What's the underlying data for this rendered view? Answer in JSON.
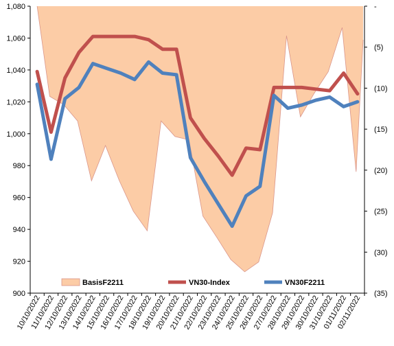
{
  "chart_data": {
    "type": "line",
    "categories": [
      "10/10/2022",
      "11/10/2022",
      "12/10/2022",
      "13/10/2022",
      "14/10/2022",
      "15/10/2022",
      "16/10/2022",
      "17/10/2022",
      "18/10/2022",
      "19/10/2022",
      "20/10/2022",
      "21/10/2022",
      "22/10/2022",
      "23/10/2022",
      "24/10/2022",
      "25/10/2022",
      "26/10/2022",
      "27/10/2022",
      "28/10/2022",
      "29/10/2022",
      "30/10/2022",
      "31/10/2022",
      "01/11/2022",
      "02/11/2022"
    ],
    "left_axis": {
      "min": 900,
      "max": 1080,
      "ticks": [
        "900",
        "920",
        "940",
        "960",
        "980",
        "1,000",
        "1,020",
        "1,040",
        "1,060",
        "1,080"
      ]
    },
    "right_axis": {
      "min": 0,
      "max": 35,
      "reversed": true,
      "ticks": [
        "-",
        "(5)",
        "(10)",
        "(15)",
        "(20)",
        "(25)",
        "(30)",
        "(35)"
      ]
    },
    "series": [
      {
        "name": "BasisF2211",
        "kind": "area",
        "axis": "right",
        "color": "#fccca6",
        "edge_color": "#d9958a",
        "x": [
          0,
          0.9,
          1.9,
          2.9,
          3.9,
          4.9,
          5.9,
          6.9,
          7.9,
          8.9,
          9.9,
          10.9,
          11.9,
          12.9,
          13.9,
          14.9,
          15.9,
          16.9,
          17.9,
          18.9,
          19.9,
          20.9,
          21.9,
          22.9,
          23.4
        ],
        "values": [
          0,
          11,
          12,
          14,
          21.3,
          17,
          21.3,
          25,
          27.4,
          14,
          15.9,
          16.3,
          25.6,
          28.2,
          30.9,
          32.4,
          31.2,
          25.2,
          3.6,
          13.5,
          10.6,
          8,
          2.6,
          20.2,
          4.1
        ]
      },
      {
        "name": "VN30-Index",
        "kind": "line",
        "axis": "left",
        "color": "#c0504d",
        "x": [
          0,
          1,
          2,
          3,
          4,
          5,
          6,
          7,
          8,
          9,
          10,
          11,
          12,
          13,
          14,
          15,
          16,
          17,
          18,
          19,
          20,
          21,
          22,
          23
        ],
        "values": [
          1039,
          1001,
          1035,
          1051,
          1061,
          1061,
          1061,
          1061,
          1059,
          1053,
          1053,
          1010,
          997,
          986,
          974,
          991,
          990,
          1029,
          1029,
          1029,
          1028,
          1027,
          1038,
          1025
        ]
      },
      {
        "name": "VN30F2211",
        "kind": "line",
        "axis": "left",
        "color": "#4f81bd",
        "x": [
          0,
          1,
          2,
          3,
          4,
          5,
          6,
          7,
          8,
          9,
          10,
          11,
          12,
          13,
          14,
          15,
          16,
          17,
          18,
          19,
          20,
          21,
          22,
          23
        ],
        "values": [
          1031,
          984,
          1022,
          1029,
          1044,
          1041,
          1038,
          1034,
          1045,
          1038,
          1037,
          985,
          970,
          956,
          942,
          961,
          967,
          1024,
          1016,
          1018,
          1021,
          1023,
          1017,
          1020
        ]
      }
    ],
    "legend": {
      "placement": "bottom-inside",
      "entries": [
        "BasisF2211",
        "VN30-Index",
        "VN30F2211"
      ]
    },
    "grid": false
  }
}
